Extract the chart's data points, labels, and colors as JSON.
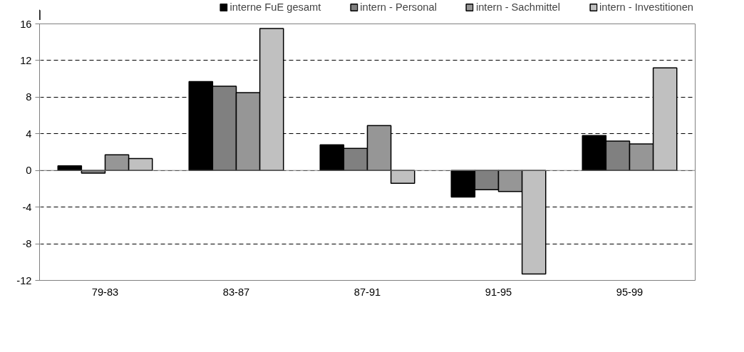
{
  "chart_data": {
    "type": "bar",
    "categories": [
      "79-83",
      "83-87",
      "87-91",
      "91-95",
      "95-99"
    ],
    "series": [
      {
        "name": "interne FuE gesamt",
        "color": "#000000",
        "values": [
          0.5,
          9.7,
          2.8,
          -2.9,
          3.8
        ]
      },
      {
        "name": "intern - Personal",
        "color": "#808080",
        "values": [
          -0.3,
          9.2,
          2.4,
          -2.1,
          3.2
        ]
      },
      {
        "name": "intern - Sachmittel",
        "color": "#969696",
        "values": [
          1.7,
          8.5,
          4.9,
          -2.3,
          2.9
        ]
      },
      {
        "name": "intern - Investitionen",
        "color": "#c0c0c0",
        "values": [
          1.3,
          15.5,
          -1.4,
          -11.3,
          11.2
        ]
      }
    ],
    "ylim": [
      -12,
      16
    ],
    "yticks": [
      -12,
      -8,
      -4,
      0,
      4,
      8,
      12,
      16
    ],
    "grid": "y",
    "legend": "top"
  }
}
